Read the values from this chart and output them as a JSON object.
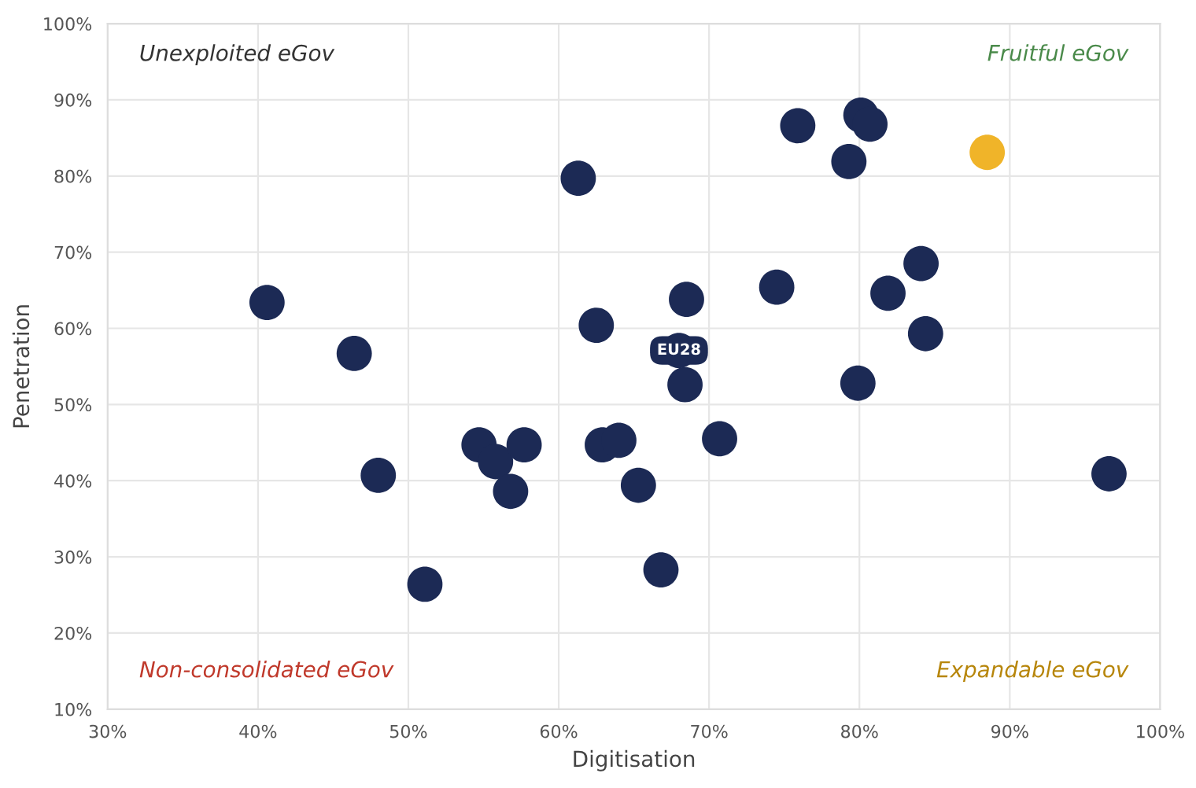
{
  "chart_data": {
    "type": "scatter",
    "xlabel": "Digitisation",
    "ylabel": "Penetration",
    "x": [
      40.6,
      46.4,
      48.0,
      51.1,
      54.7,
      55.8,
      56.8,
      57.7,
      61.3,
      62.5,
      62.9,
      64.0,
      65.3,
      66.8,
      68.0,
      68.4,
      68.5,
      70.7,
      74.5,
      75.9,
      79.3,
      80.1,
      80.7,
      79.9,
      81.9,
      84.1,
      84.4,
      88.5,
      96.6
    ],
    "series": [
      {
        "values": [
          63.4,
          56.7,
          40.7,
          26.4,
          44.7,
          42.5,
          38.6,
          44.7,
          79.7,
          60.4,
          44.7,
          45.3,
          39.4,
          28.3,
          57.1,
          52.6,
          63.8,
          45.5,
          65.4,
          86.6,
          81.9,
          88.0,
          86.8,
          52.8,
          64.6,
          68.5,
          59.3,
          83.1,
          40.9
        ],
        "colors": [
          "#1c2a55",
          "#1c2a55",
          "#1c2a55",
          "#1c2a55",
          "#1c2a55",
          "#1c2a55",
          "#1c2a55",
          "#1c2a55",
          "#1c2a55",
          "#1c2a55",
          "#1c2a55",
          "#1c2a55",
          "#1c2a55",
          "#1c2a55",
          "#1c2a55",
          "#1c2a55",
          "#1c2a55",
          "#1c2a55",
          "#1c2a55",
          "#1c2a55",
          "#1c2a55",
          "#1c2a55",
          "#1c2a55",
          "#1c2a55",
          "#1c2a55",
          "#1c2a55",
          "#1c2a55",
          "#f0b429",
          "#1c2a55"
        ]
      }
    ],
    "xlim": [
      30,
      100
    ],
    "ylim": [
      10,
      100
    ],
    "xticks": [
      {
        "value": 30,
        "label": "30%"
      },
      {
        "value": 40,
        "label": "40%"
      },
      {
        "value": 50,
        "label": "50%"
      },
      {
        "value": 60,
        "label": "60%"
      },
      {
        "value": 70,
        "label": "70%"
      },
      {
        "value": 80,
        "label": "80%"
      },
      {
        "value": 90,
        "label": "90%"
      },
      {
        "value": 100,
        "label": "100%"
      }
    ],
    "yticks": [
      {
        "value": 10,
        "label": "10%"
      },
      {
        "value": 20,
        "label": "20%"
      },
      {
        "value": 30,
        "label": "30%"
      },
      {
        "value": 40,
        "label": "40%"
      },
      {
        "value": 50,
        "label": "50%"
      },
      {
        "value": 60,
        "label": "60%"
      },
      {
        "value": 70,
        "label": "70%"
      },
      {
        "value": 80,
        "label": "80%"
      },
      {
        "value": 90,
        "label": "90%"
      },
      {
        "value": 100,
        "label": "100%"
      }
    ],
    "annotations": [
      {
        "text": "EU28",
        "x": 68.0,
        "y": 57.1
      },
      "Unexploited eGov",
      "Fruitful eGov",
      "Non-consolidated eGov",
      "Expandable eGov"
    ],
    "grid": true,
    "legend": false
  }
}
